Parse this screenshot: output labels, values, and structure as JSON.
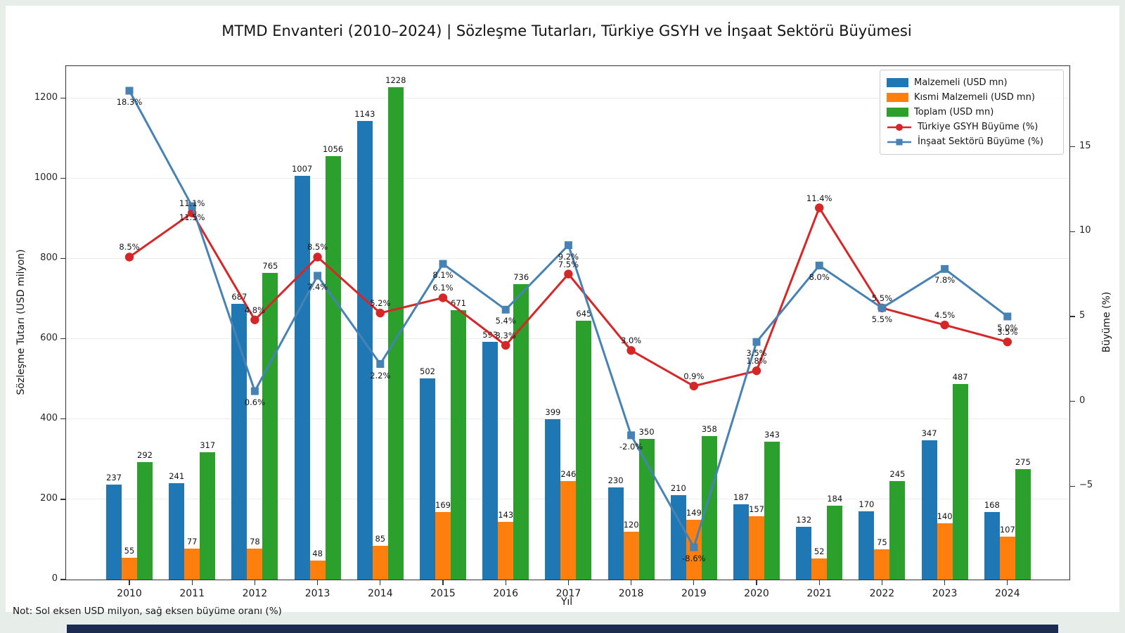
{
  "window": {
    "background": "#e7eee9",
    "figure_background": "#ffffff",
    "bottom_strip_color": "#1c2b52"
  },
  "title": "MTMD Envanteri (2010–2024) | Sözleşme Tutarları, Türkiye GSYH ve İnşaat Sektörü Büyümesi",
  "note": "Not: Sol eksen USD milyon, sağ eksen büyüme oranı (%)",
  "axes": {
    "x_label": "Yıl",
    "left_label": "Sözleşme Tutarı (USD milyon)",
    "right_label": "Büyüme (%)",
    "left_ticks": [
      0,
      200,
      400,
      600,
      800,
      1000,
      1200
    ],
    "right_ticks": [
      -5,
      0,
      5,
      10,
      15
    ]
  },
  "legend": {
    "items": [
      {
        "label": "Malzemeli (USD mn)",
        "color": "#1f77b4",
        "glyph": "bar"
      },
      {
        "label": "Kısmi Malzemeli (USD mn)",
        "color": "#ff7f0e",
        "glyph": "bar"
      },
      {
        "label": "Toplam (USD mn)",
        "color": "#2ca02c",
        "glyph": "bar"
      },
      {
        "label": "Türkiye GSYH Büyüme (%)",
        "color": "#d62728",
        "glyph": "line-circle"
      },
      {
        "label": "İnşaat Sektörü Büyüme (%)",
        "color": "#4682b4",
        "glyph": "line-square"
      }
    ]
  },
  "chart_data": {
    "type": "combo grouped-bar + line",
    "title": "MTMD Envanteri (2010–2024) | Sözleşme Tutarları, Türkiye GSYH ve İnşaat Sektörü Büyümesi",
    "xlabel": "Yıl",
    "ylabel_left": "Sözleşme Tutarı (USD milyon)",
    "ylabel_right": "Büyüme (%)",
    "categories": [
      "2010",
      "2011",
      "2012",
      "2013",
      "2014",
      "2015",
      "2016",
      "2017",
      "2018",
      "2019",
      "2020",
      "2021",
      "2022",
      "2023",
      "2024"
    ],
    "bar_series": [
      {
        "name": "Malzemeli (USD mn)",
        "color": "#1f77b4",
        "values": [
          237,
          241,
          687,
          1007,
          1143,
          502,
          593,
          399,
          230,
          210,
          187,
          132,
          170,
          347,
          168
        ]
      },
      {
        "name": "Kısmi Malzemeli (USD mn)",
        "color": "#ff7f0e",
        "values": [
          55,
          77,
          78,
          48,
          85,
          169,
          143,
          246,
          120,
          149,
          157,
          52,
          75,
          140,
          107
        ]
      },
      {
        "name": "Toplam (USD mn)",
        "color": "#2ca02c",
        "values": [
          292,
          317,
          765,
          1056,
          1228,
          671,
          736,
          645,
          350,
          358,
          343,
          184,
          245,
          487,
          275
        ]
      }
    ],
    "line_series": [
      {
        "name": "Türkiye GSYH Büyüme (%)",
        "color": "#d62728",
        "marker": "circle",
        "axis": "right",
        "label_side": "above",
        "values": [
          8.5,
          11.1,
          4.8,
          8.5,
          5.2,
          6.1,
          3.3,
          7.5,
          3.0,
          0.9,
          1.8,
          11.4,
          5.5,
          4.5,
          3.5
        ],
        "labels": [
          "8.5%",
          "11.1%",
          "4.8%",
          "8.5%",
          "5.2%",
          "6.1%",
          "3.3%",
          "7.5%",
          "3.0%",
          "0.9%",
          "1.8%",
          "11.4%",
          "5.5%",
          "4.5%",
          "3.5%"
        ]
      },
      {
        "name": "İnşaat Sektörü Büyüme (%)",
        "color": "#4682b4",
        "marker": "square",
        "axis": "right",
        "label_side": "below",
        "values": [
          18.3,
          11.5,
          0.6,
          7.4,
          2.2,
          8.1,
          5.4,
          9.2,
          -2.0,
          -8.6,
          3.5,
          8.0,
          5.5,
          7.8,
          5.0
        ],
        "labels": [
          "18.3%",
          "11.5%",
          "0.6%",
          "7.4%",
          "2.2%",
          "8.1%",
          "5.4%",
          "9.2%",
          "-2.0%",
          "-8.6%",
          "3.5%",
          "8.0%",
          "5.5%",
          "7.8%",
          "5.0%"
        ]
      }
    ],
    "ylim_left": [
      0,
      1280
    ],
    "ylim_right": [
      -10.5,
      19.75
    ],
    "grid": "horizontal gridlines at left-axis ticks",
    "legend_position": "upper right"
  }
}
